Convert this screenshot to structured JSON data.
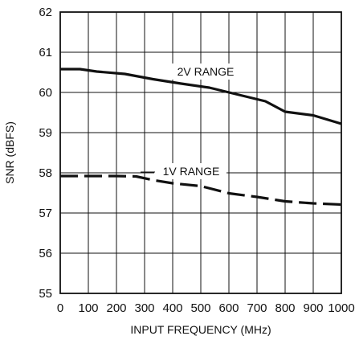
{
  "chart_data": {
    "type": "line",
    "xlabel": "INPUT FREQUENCY (MHz)",
    "ylabel": "SNR (dBFS)",
    "xlim": [
      0,
      1000
    ],
    "ylim": [
      55,
      62
    ],
    "xticks": [
      0,
      100,
      200,
      300,
      400,
      500,
      600,
      700,
      800,
      900,
      1000
    ],
    "yticks": [
      55,
      56,
      57,
      58,
      59,
      60,
      61,
      62
    ],
    "grid": true,
    "series": [
      {
        "name": "2V RANGE",
        "style": "solid",
        "x": [
          0,
          70,
          130,
          230,
          330,
          430,
          530,
          630,
          730,
          800,
          900,
          1000
        ],
        "y": [
          60.58,
          60.58,
          60.52,
          60.46,
          60.33,
          60.22,
          60.12,
          59.95,
          59.78,
          59.52,
          59.43,
          59.22
        ]
      },
      {
        "name": "1V RANGE",
        "style": "dashed",
        "x": [
          0,
          100,
          200,
          270,
          330,
          400,
          500,
          600,
          700,
          800,
          900,
          1000
        ],
        "y": [
          57.92,
          57.92,
          57.92,
          57.91,
          57.82,
          57.74,
          57.67,
          57.49,
          57.4,
          57.29,
          57.24,
          57.21
        ]
      }
    ]
  }
}
